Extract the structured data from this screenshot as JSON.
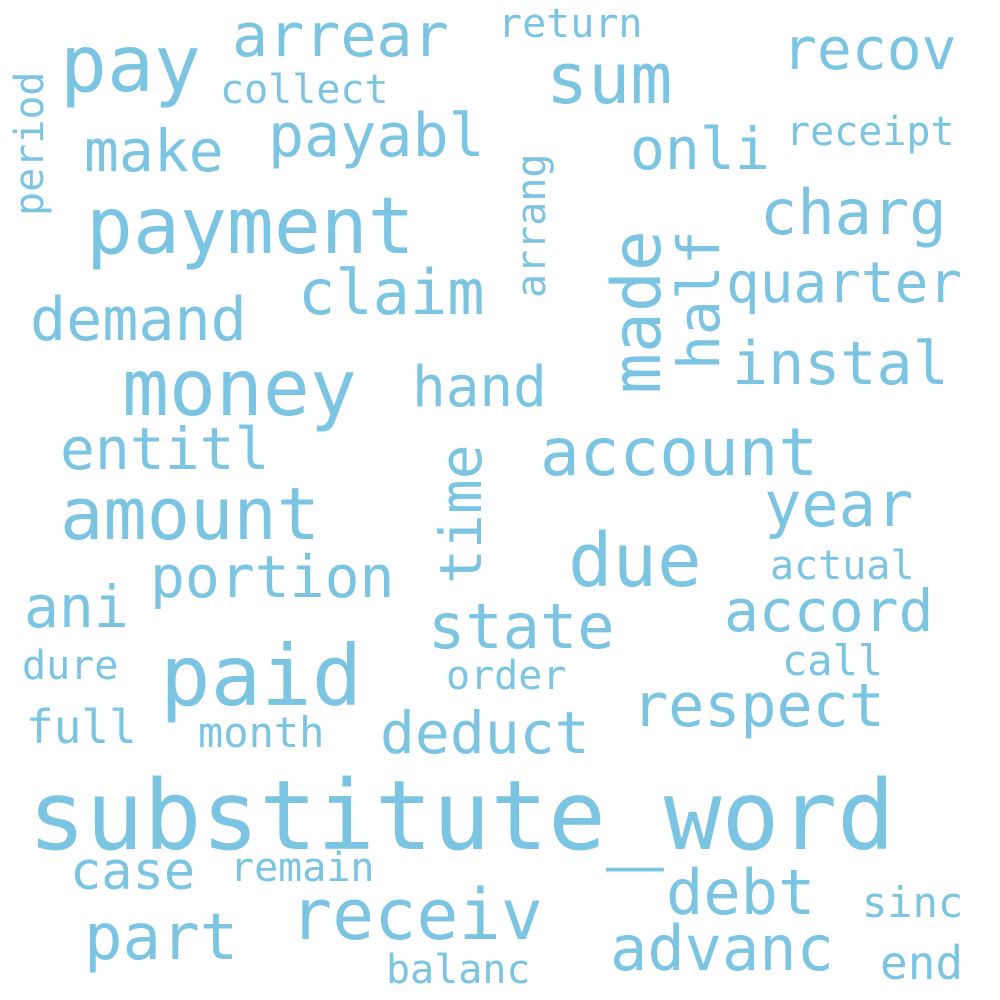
{
  "cloud": {
    "color": "#7bc4e2",
    "background": "#ffffff",
    "words": [
      {
        "text": "substitute_word"
      },
      {
        "text": "payment"
      },
      {
        "text": "money"
      },
      {
        "text": "paid"
      },
      {
        "text": "amount"
      },
      {
        "text": "pay"
      },
      {
        "text": "sum"
      },
      {
        "text": "due"
      },
      {
        "text": "receiv"
      },
      {
        "text": "account"
      },
      {
        "text": "made",
        "orientation": "vertical"
      },
      {
        "text": "half",
        "orientation": "vertical"
      },
      {
        "text": "claim"
      },
      {
        "text": "arrear"
      },
      {
        "text": "recov"
      },
      {
        "text": "year"
      },
      {
        "text": "demand"
      },
      {
        "text": "payabl"
      },
      {
        "text": "charg"
      },
      {
        "text": "quarter"
      },
      {
        "text": "instal"
      },
      {
        "text": "accord"
      },
      {
        "text": "respect"
      },
      {
        "text": "advanc"
      },
      {
        "text": "part"
      },
      {
        "text": "state"
      },
      {
        "text": "portion"
      },
      {
        "text": "entitl"
      },
      {
        "text": "time",
        "orientation": "vertical"
      },
      {
        "text": "hand"
      },
      {
        "text": "onli"
      },
      {
        "text": "make"
      },
      {
        "text": "debt"
      },
      {
        "text": "deduct"
      },
      {
        "text": "ani"
      },
      {
        "text": "case"
      },
      {
        "text": "collect"
      },
      {
        "text": "return"
      },
      {
        "text": "receipt"
      },
      {
        "text": "period",
        "orientation": "vertical"
      },
      {
        "text": "arrang",
        "orientation": "vertical"
      },
      {
        "text": "actual"
      },
      {
        "text": "call"
      },
      {
        "text": "order"
      },
      {
        "text": "month"
      },
      {
        "text": "dure"
      },
      {
        "text": "full"
      },
      {
        "text": "remain"
      },
      {
        "text": "sinc"
      },
      {
        "text": "end"
      },
      {
        "text": "balanc"
      }
    ]
  }
}
